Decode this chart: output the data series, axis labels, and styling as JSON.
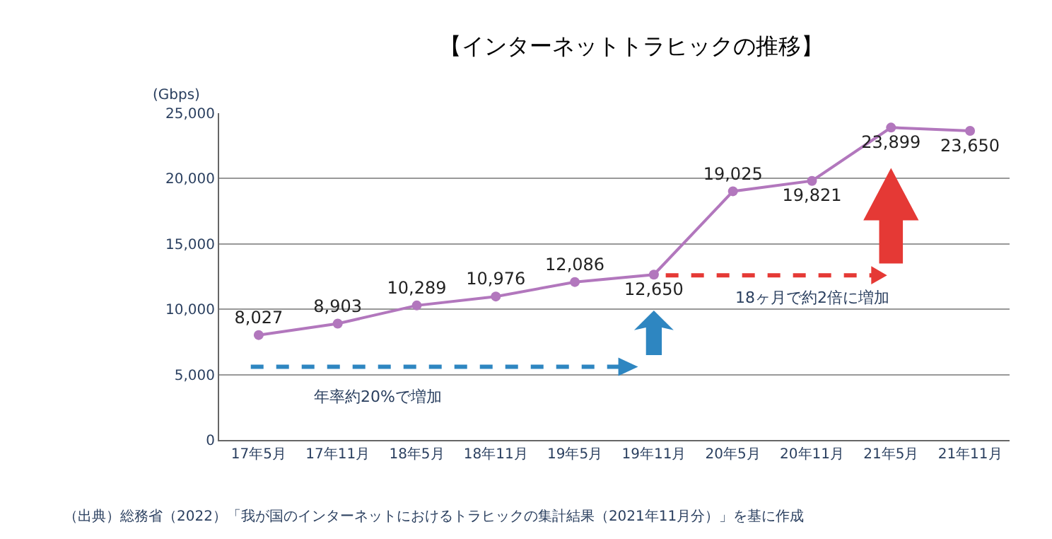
{
  "chart_data": {
    "type": "line",
    "title": "【インターネットトラヒックの推移】",
    "ylabel": "(Gbps)",
    "categories": [
      "17年5月",
      "17年11月",
      "18年5月",
      "18年11月",
      "19年5月",
      "19年11月",
      "20年5月",
      "20年11月",
      "21年5月",
      "21年11月"
    ],
    "series": [
      {
        "color": "#b277bd",
        "values": [
          8027,
          8903,
          10289,
          10976,
          12086,
          12650,
          19025,
          19821,
          23899,
          23650
        ],
        "value_labels": [
          "8,027",
          "8,903",
          "10,289",
          "10,976",
          "12,086",
          "12,650",
          "19,025",
          "19,821",
          "23,899",
          "23,650"
        ]
      }
    ],
    "ylim": [
      0,
      25000
    ],
    "yticks": [
      0,
      {
        "value": 5000,
        "label": "5,000"
      },
      {
        "value": 10000,
        "label": "10,000"
      },
      {
        "value": 15000,
        "label": "15,000"
      },
      {
        "value": 20000,
        "label": "20,000"
      },
      {
        "value": 25000,
        "label": "25,000"
      }
    ],
    "grid": "y",
    "marker": "circle",
    "line_style": "solid",
    "annotations": [
      "年率約20%で増加",
      "18ヶ月で約2倍に増加",
      "（出典）総務省（2022）「我が国のインターネットにおけるトラヒックの集計結果（2021年11月分）」を基に作成"
    ]
  }
}
